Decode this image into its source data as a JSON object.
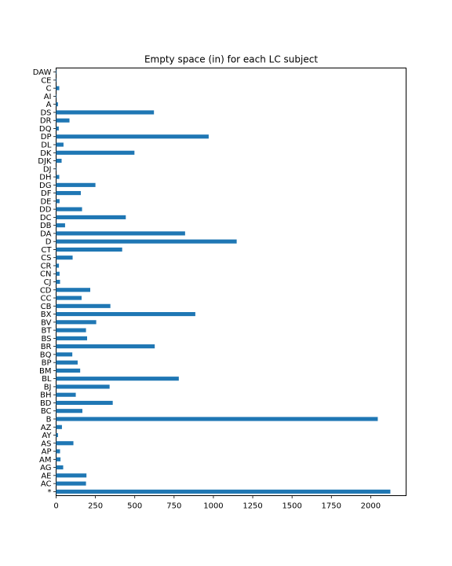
{
  "chart_data": {
    "type": "bar",
    "orientation": "horizontal",
    "title": "Empty space (in) for each LC subject",
    "xlabel": "",
    "ylabel": "",
    "xlim": [
      0,
      2225
    ],
    "xticks": [
      0,
      250,
      500,
      750,
      1000,
      1250,
      1500,
      1750,
      2000
    ],
    "grid": false,
    "legend": "none",
    "bar_color": "#1f77b4",
    "categories": [
      "*",
      "AC",
      "AE",
      "AG",
      "AM",
      "AP",
      "AS",
      "AY",
      "AZ",
      "B",
      "BC",
      "BD",
      "BH",
      "BJ",
      "BL",
      "BM",
      "BP",
      "BQ",
      "BR",
      "BS",
      "BT",
      "BV",
      "BX",
      "CB",
      "CC",
      "CD",
      "CJ",
      "CN",
      "CR",
      "CS",
      "CT",
      "D",
      "DA",
      "DB",
      "DC",
      "DD",
      "DE",
      "DF",
      "DG",
      "DH",
      "DJ",
      "DJK",
      "DK",
      "DL",
      "DP",
      "DQ",
      "DR",
      "DS",
      "A",
      "AI",
      "C",
      "CE",
      "DAW"
    ],
    "values": [
      2125,
      190,
      193,
      45,
      28,
      25,
      110,
      12,
      37,
      2045,
      167,
      360,
      125,
      340,
      780,
      153,
      137,
      103,
      627,
      197,
      190,
      255,
      885,
      345,
      162,
      217,
      25,
      22,
      18,
      105,
      420,
      1148,
      820,
      57,
      443,
      165,
      22,
      157,
      250,
      20,
      3,
      35,
      498,
      47,
      970,
      17,
      85,
      622,
      12,
      3,
      20,
      3,
      3
    ]
  }
}
